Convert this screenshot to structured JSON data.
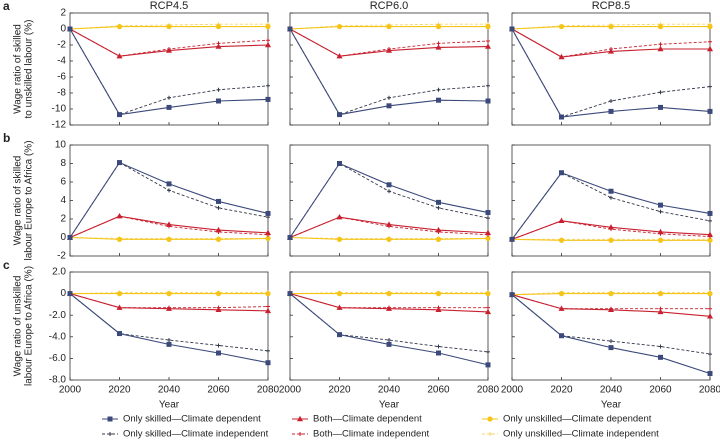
{
  "chart_data": [
    {
      "type": "line",
      "panel_label": "a",
      "title": "RCP4.5",
      "ylabel": [
        "Wage ratio of skilled",
        "to unskilled labour (%)"
      ],
      "x": [
        2000,
        2020,
        2040,
        2060,
        2080
      ],
      "xlim": [
        2000,
        2080
      ],
      "xticks": [
        2000,
        2020,
        2040,
        2060,
        2080
      ],
      "ylim": [
        -12,
        2
      ],
      "yticks": [
        2,
        0,
        -2,
        -4,
        -6,
        -8,
        -10,
        -12
      ],
      "series": [
        {
          "name": "Only skilled—Climate dependent",
          "color": "#3b4a7a",
          "marker": "square",
          "dash": false,
          "values": [
            0,
            -10.7,
            -9.8,
            -9.0,
            -8.8
          ]
        },
        {
          "name": "Only skilled—Climate independent",
          "color": "#33384a",
          "marker": "tick",
          "dash": true,
          "values": [
            0,
            -10.7,
            -8.6,
            -7.6,
            -7.1
          ]
        },
        {
          "name": "Both—Climate dependent",
          "color": "#c8202f",
          "marker": "triangle",
          "dash": false,
          "values": [
            0,
            -3.4,
            -2.7,
            -2.2,
            -2.0
          ]
        },
        {
          "name": "Both—Climate independent",
          "color": "#c8202f",
          "marker": "tick",
          "dash": true,
          "values": [
            0,
            -3.4,
            -2.5,
            -1.8,
            -1.4
          ]
        },
        {
          "name": "Only unskilled—Climate dependent",
          "color": "#f5c518",
          "marker": "circle",
          "dash": false,
          "values": [
            0,
            0.3,
            0.3,
            0.3,
            0.3
          ]
        },
        {
          "name": "Only unskilled—Climate independent",
          "color": "#f7d56b",
          "marker": "tick",
          "dash": true,
          "values": [
            0,
            0.4,
            0.5,
            0.6,
            0.6
          ]
        }
      ]
    },
    {
      "type": "line",
      "title": "RCP6.0",
      "x": [
        2000,
        2020,
        2040,
        2060,
        2080
      ],
      "xlim": [
        2000,
        2080
      ],
      "xticks": [
        2000,
        2020,
        2040,
        2060,
        2080
      ],
      "ylim": [
        -12,
        2
      ],
      "yticks": [
        2,
        0,
        -2,
        -4,
        -6,
        -8,
        -10,
        -12
      ],
      "series": [
        {
          "color": "#3b4a7a",
          "marker": "square",
          "dash": false,
          "values": [
            0,
            -10.7,
            -9.6,
            -8.9,
            -9.0
          ]
        },
        {
          "color": "#33384a",
          "marker": "tick",
          "dash": true,
          "values": [
            0,
            -10.7,
            -8.6,
            -7.6,
            -7.1
          ]
        },
        {
          "color": "#c8202f",
          "marker": "triangle",
          "dash": false,
          "values": [
            0,
            -3.4,
            -2.7,
            -2.3,
            -2.2
          ]
        },
        {
          "color": "#c8202f",
          "marker": "tick",
          "dash": true,
          "values": [
            0,
            -3.4,
            -2.5,
            -1.8,
            -1.5
          ]
        },
        {
          "color": "#f5c518",
          "marker": "circle",
          "dash": false,
          "values": [
            0,
            0.3,
            0.3,
            0.3,
            0.3
          ]
        },
        {
          "color": "#f7d56b",
          "marker": "tick",
          "dash": true,
          "values": [
            0,
            0.4,
            0.5,
            0.6,
            0.6
          ]
        }
      ]
    },
    {
      "type": "line",
      "title": "RCP8.5",
      "x": [
        2000,
        2020,
        2040,
        2060,
        2080
      ],
      "xlim": [
        2000,
        2080
      ],
      "xticks": [
        2000,
        2020,
        2040,
        2060,
        2080
      ],
      "ylim": [
        -12,
        2
      ],
      "yticks": [
        2,
        0,
        -2,
        -4,
        -6,
        -8,
        -10,
        -12
      ],
      "series": [
        {
          "color": "#3b4a7a",
          "marker": "square",
          "dash": false,
          "values": [
            0,
            -11.0,
            -10.3,
            -9.8,
            -10.3
          ]
        },
        {
          "color": "#33384a",
          "marker": "tick",
          "dash": true,
          "values": [
            0,
            -11.0,
            -9.0,
            -7.9,
            -7.2
          ]
        },
        {
          "color": "#c8202f",
          "marker": "triangle",
          "dash": false,
          "values": [
            0,
            -3.5,
            -2.8,
            -2.5,
            -2.5
          ]
        },
        {
          "color": "#c8202f",
          "marker": "tick",
          "dash": true,
          "values": [
            0,
            -3.5,
            -2.5,
            -1.9,
            -1.6
          ]
        },
        {
          "color": "#f5c518",
          "marker": "circle",
          "dash": false,
          "values": [
            0,
            0.3,
            0.3,
            0.3,
            0.3
          ]
        },
        {
          "color": "#f7d56b",
          "marker": "tick",
          "dash": true,
          "values": [
            0,
            0.4,
            0.5,
            0.6,
            0.6
          ]
        }
      ]
    },
    {
      "type": "line",
      "panel_label": "b",
      "ylabel": [
        "Wage ratio of skilled",
        "labour Europe to Africa (%)"
      ],
      "x": [
        2000,
        2020,
        2040,
        2060,
        2080
      ],
      "xlim": [
        2000,
        2080
      ],
      "xticks": [
        2000,
        2020,
        2040,
        2060,
        2080
      ],
      "ylim": [
        -2,
        10
      ],
      "yticks": [
        10,
        8,
        6,
        4,
        2,
        0,
        -2
      ],
      "series": [
        {
          "color": "#3b4a7a",
          "marker": "square",
          "dash": false,
          "values": [
            0,
            8.1,
            5.8,
            3.9,
            2.6
          ]
        },
        {
          "color": "#33384a",
          "marker": "tick",
          "dash": true,
          "values": [
            0,
            8.1,
            5.1,
            3.2,
            2.2
          ]
        },
        {
          "color": "#c8202f",
          "marker": "triangle",
          "dash": false,
          "values": [
            0,
            2.3,
            1.4,
            0.8,
            0.5
          ]
        },
        {
          "color": "#c8202f",
          "marker": "tick",
          "dash": true,
          "values": [
            0,
            2.3,
            1.2,
            0.6,
            0.3
          ]
        },
        {
          "color": "#f5c518",
          "marker": "circle",
          "dash": false,
          "values": [
            0,
            -0.2,
            -0.2,
            -0.2,
            -0.1
          ]
        },
        {
          "color": "#f7d56b",
          "marker": "tick",
          "dash": true,
          "values": [
            0,
            -0.1,
            -0.1,
            -0.1,
            -0.1
          ]
        }
      ]
    },
    {
      "type": "line",
      "x": [
        2000,
        2020,
        2040,
        2060,
        2080
      ],
      "xlim": [
        2000,
        2080
      ],
      "xticks": [
        2000,
        2020,
        2040,
        2060,
        2080
      ],
      "ylim": [
        -2,
        10
      ],
      "yticks": [
        10,
        8,
        6,
        4,
        2,
        0,
        -2
      ],
      "series": [
        {
          "color": "#3b4a7a",
          "marker": "square",
          "dash": false,
          "values": [
            0,
            8.0,
            5.7,
            3.8,
            2.7
          ]
        },
        {
          "color": "#33384a",
          "marker": "tick",
          "dash": true,
          "values": [
            0,
            8.0,
            5.0,
            3.2,
            2.1
          ]
        },
        {
          "color": "#c8202f",
          "marker": "triangle",
          "dash": false,
          "values": [
            0,
            2.2,
            1.4,
            0.8,
            0.5
          ]
        },
        {
          "color": "#c8202f",
          "marker": "tick",
          "dash": true,
          "values": [
            0,
            2.2,
            1.2,
            0.6,
            0.3
          ]
        },
        {
          "color": "#f5c518",
          "marker": "circle",
          "dash": false,
          "values": [
            0,
            -0.2,
            -0.2,
            -0.2,
            -0.1
          ]
        },
        {
          "color": "#f7d56b",
          "marker": "tick",
          "dash": true,
          "values": [
            0,
            -0.1,
            -0.1,
            -0.1,
            -0.1
          ]
        }
      ]
    },
    {
      "type": "line",
      "x": [
        2000,
        2020,
        2040,
        2060,
        2080
      ],
      "xlim": [
        2000,
        2080
      ],
      "xticks": [
        2000,
        2020,
        2040,
        2060,
        2080
      ],
      "ylim": [
        -2,
        10
      ],
      "yticks": [
        10,
        8,
        6,
        4,
        2,
        0,
        -2
      ],
      "series": [
        {
          "color": "#3b4a7a",
          "marker": "square",
          "dash": false,
          "values": [
            -0.2,
            7.0,
            5.0,
            3.5,
            2.6
          ]
        },
        {
          "color": "#33384a",
          "marker": "tick",
          "dash": true,
          "values": [
            -0.2,
            7.0,
            4.3,
            2.8,
            1.8
          ]
        },
        {
          "color": "#c8202f",
          "marker": "triangle",
          "dash": false,
          "values": [
            -0.2,
            1.8,
            1.1,
            0.6,
            0.3
          ]
        },
        {
          "color": "#c8202f",
          "marker": "tick",
          "dash": true,
          "values": [
            -0.2,
            1.8,
            0.9,
            0.4,
            0.1
          ]
        },
        {
          "color": "#f5c518",
          "marker": "circle",
          "dash": false,
          "values": [
            -0.2,
            -0.3,
            -0.3,
            -0.3,
            -0.3
          ]
        },
        {
          "color": "#f7d56b",
          "marker": "tick",
          "dash": true,
          "values": [
            -0.2,
            -0.2,
            -0.2,
            -0.2,
            -0.2
          ]
        }
      ]
    },
    {
      "type": "line",
      "panel_label": "c",
      "ylabel": [
        "Wage ratio of unskilled",
        "labour Europe to Africa (%)"
      ],
      "xlabel": "Year",
      "x": [
        2000,
        2020,
        2040,
        2060,
        2080
      ],
      "xlim": [
        2000,
        2080
      ],
      "xticks": [
        2000,
        2020,
        2040,
        2060,
        2080
      ],
      "ylim": [
        -8,
        2
      ],
      "yticks": [
        {
          "value": 2,
          "label": "2.0"
        },
        0,
        {
          "value": -2,
          "label": "-2.0"
        },
        {
          "value": -4,
          "label": "-4.0"
        },
        {
          "value": -6,
          "label": "-6.0"
        },
        {
          "value": -8,
          "label": "-8.0"
        }
      ],
      "series": [
        {
          "color": "#3b4a7a",
          "marker": "square",
          "dash": false,
          "values": [
            0,
            -3.7,
            -4.7,
            -5.5,
            -6.4
          ]
        },
        {
          "color": "#33384a",
          "marker": "tick",
          "dash": true,
          "values": [
            0,
            -3.7,
            -4.3,
            -4.8,
            -5.3
          ]
        },
        {
          "color": "#c8202f",
          "marker": "triangle",
          "dash": false,
          "values": [
            0,
            -1.3,
            -1.4,
            -1.5,
            -1.6
          ]
        },
        {
          "color": "#c8202f",
          "marker": "tick",
          "dash": true,
          "values": [
            0,
            -1.3,
            -1.3,
            -1.3,
            -1.2
          ]
        },
        {
          "color": "#f5c518",
          "marker": "circle",
          "dash": false,
          "values": [
            0,
            0,
            0,
            0,
            0
          ]
        },
        {
          "color": "#f7d56b",
          "marker": "tick",
          "dash": true,
          "values": [
            0,
            0.1,
            0.1,
            0.1,
            0.1
          ]
        }
      ]
    },
    {
      "type": "line",
      "xlabel": "Year",
      "x": [
        2000,
        2020,
        2040,
        2060,
        2080
      ],
      "xlim": [
        2000,
        2080
      ],
      "xticks": [
        2000,
        2020,
        2040,
        2060,
        2080
      ],
      "ylim": [
        -8,
        2
      ],
      "yticks": [
        2,
        0,
        -2,
        -4,
        -6,
        -8
      ],
      "series": [
        {
          "color": "#3b4a7a",
          "marker": "square",
          "dash": false,
          "values": [
            0,
            -3.8,
            -4.7,
            -5.5,
            -6.6
          ]
        },
        {
          "color": "#33384a",
          "marker": "tick",
          "dash": true,
          "values": [
            0,
            -3.8,
            -4.3,
            -4.9,
            -5.4
          ]
        },
        {
          "color": "#c8202f",
          "marker": "triangle",
          "dash": false,
          "values": [
            0,
            -1.3,
            -1.4,
            -1.5,
            -1.7
          ]
        },
        {
          "color": "#c8202f",
          "marker": "tick",
          "dash": true,
          "values": [
            0,
            -1.3,
            -1.3,
            -1.3,
            -1.3
          ]
        },
        {
          "color": "#f5c518",
          "marker": "circle",
          "dash": false,
          "values": [
            0,
            0,
            0,
            0,
            0
          ]
        },
        {
          "color": "#f7d56b",
          "marker": "tick",
          "dash": true,
          "values": [
            0,
            0.1,
            0.1,
            0.1,
            0.1
          ]
        }
      ]
    },
    {
      "type": "line",
      "xlabel": "Year",
      "x": [
        2000,
        2020,
        2040,
        2060,
        2080
      ],
      "xlim": [
        2000,
        2080
      ],
      "xticks": [
        2000,
        2020,
        2040,
        2060,
        2080
      ],
      "ylim": [
        -8,
        2
      ],
      "yticks": [
        2,
        0,
        -2,
        -4,
        -6,
        -8
      ],
      "series": [
        {
          "color": "#3b4a7a",
          "marker": "square",
          "dash": false,
          "values": [
            -0.1,
            -3.9,
            -5.0,
            -5.9,
            -7.4
          ]
        },
        {
          "color": "#33384a",
          "marker": "tick",
          "dash": true,
          "values": [
            -0.1,
            -3.9,
            -4.4,
            -4.9,
            -5.6
          ]
        },
        {
          "color": "#c8202f",
          "marker": "triangle",
          "dash": false,
          "values": [
            -0.1,
            -1.4,
            -1.5,
            -1.7,
            -2.1
          ]
        },
        {
          "color": "#c8202f",
          "marker": "tick",
          "dash": true,
          "values": [
            -0.1,
            -1.4,
            -1.4,
            -1.4,
            -1.4
          ]
        },
        {
          "color": "#f5c518",
          "marker": "circle",
          "dash": false,
          "values": [
            -0.1,
            0,
            0,
            0,
            0
          ]
        },
        {
          "color": "#f7d56b",
          "marker": "tick",
          "dash": true,
          "values": [
            -0.1,
            0.1,
            0.1,
            0.1,
            0.1
          ]
        }
      ]
    }
  ]
}
